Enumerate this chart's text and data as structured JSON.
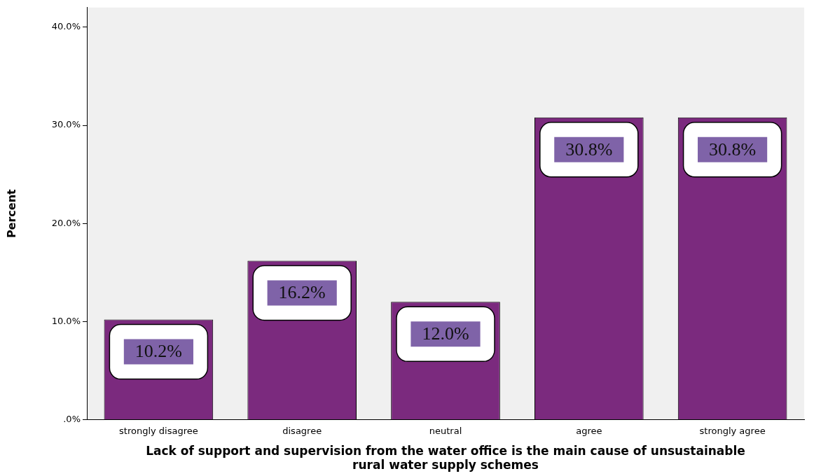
{
  "chart_data": {
    "type": "bar",
    "xlabel": "Lack of support and supervision from the water office is the main cause of unsustainable rural water supply schemes",
    "ylabel": "Percent",
    "categories": [
      "strongly disagree",
      "disagree",
      "neutral",
      "agree",
      "strongly agree"
    ],
    "values": [
      10.2,
      16.2,
      12.0,
      30.8,
      30.8
    ],
    "value_labels": [
      "10.2%",
      "16.2%",
      "12.0%",
      "30.8%",
      "30.8%"
    ],
    "color": "#7b2a7e",
    "ylim": [
      0,
      42
    ],
    "yticks": [
      {
        "value": 0,
        "label": ".0%"
      },
      {
        "value": 10,
        "label": "10.0%"
      },
      {
        "value": 20,
        "label": "20.0%"
      },
      {
        "value": 30,
        "label": "30.0%"
      },
      {
        "value": 40,
        "label": "40.0%"
      }
    ],
    "grid": false,
    "legend": false
  }
}
